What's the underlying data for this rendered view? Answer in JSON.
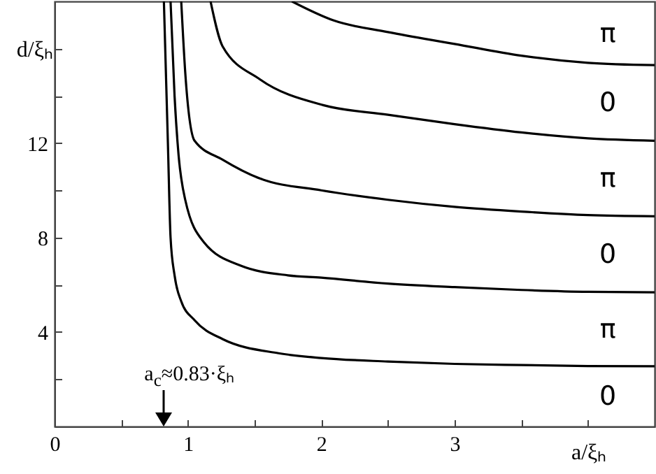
{
  "chart_data": {
    "type": "line",
    "xlabel": "a/ξₕ",
    "ylabel": "d/ξₕ",
    "xlim": [
      0,
      4.5
    ],
    "ylim": [
      0,
      18
    ],
    "xticks": [
      0,
      {
        "value": 0.5,
        "label": null
      },
      1,
      {
        "value": 1.5,
        "label": null
      },
      2,
      {
        "value": 2.5,
        "label": null
      },
      3,
      {
        "value": 3.5,
        "label": null
      },
      {
        "value": 4,
        "label": null
      }
    ],
    "yticks": [
      {
        "value": 0,
        "label": null
      },
      {
        "value": 2,
        "label": null
      },
      4,
      {
        "value": 6,
        "label": null
      },
      8,
      {
        "value": 10,
        "label": null
      },
      12,
      {
        "value": 14,
        "label": null
      },
      {
        "value": 16,
        "label": null
      }
    ],
    "grid": false,
    "marker": "none",
    "line_style": "solid",
    "series": [
      {
        "color": "#000000",
        "x": [
          0.82,
          0.85,
          0.87,
          0.9,
          0.95,
          1.05,
          1.26,
          1.68,
          2.0,
          2.5,
          3,
          3.5,
          4,
          4.5
        ],
        "values": [
          18,
          12,
          8,
          6.4,
          5.3,
          4.5,
          3.7,
          3.1,
          2.9,
          2.75,
          2.65,
          2.6,
          2.56,
          2.55
        ]
      },
      {
        "color": "#000000",
        "x": [
          0.87,
          0.9,
          0.93,
          0.98,
          1.12,
          1.4,
          1.75,
          2,
          2.5,
          3,
          3.5,
          4,
          4.5
        ],
        "values": [
          18,
          14,
          11.5,
          9.6,
          7.8,
          6.8,
          6.4,
          6.3,
          6.05,
          5.9,
          5.78,
          5.7,
          5.68
        ]
      },
      {
        "color": "#000000",
        "x": [
          0.95,
          0.98,
          1.05,
          1.26,
          1.54,
          2,
          2.5,
          3,
          3.5,
          4,
          4.5
        ],
        "values": [
          18,
          15,
          12.1,
          11.3,
          10.5,
          10.0,
          9.6,
          9.3,
          9.1,
          8.95,
          8.9
        ]
      },
      {
        "color": "#000000",
        "x": [
          1.17,
          1.26,
          1.54,
          2.02,
          2.5,
          3,
          3.5,
          4,
          4.5
        ],
        "values": [
          18,
          16.1,
          14.7,
          13.6,
          13.2,
          12.8,
          12.45,
          12.2,
          12.1
        ]
      },
      {
        "color": "#000000",
        "x": [
          1.78,
          2.09,
          2.5,
          3,
          3.5,
          4,
          4.5
        ],
        "values": [
          18,
          17.2,
          16.7,
          16.2,
          15.7,
          15.4,
          15.3
        ]
      }
    ],
    "annotations": [
      "π",
      "0",
      "π",
      "0",
      "π",
      "0",
      "a$_{c}$≈0.83·ξₕ"
    ]
  }
}
